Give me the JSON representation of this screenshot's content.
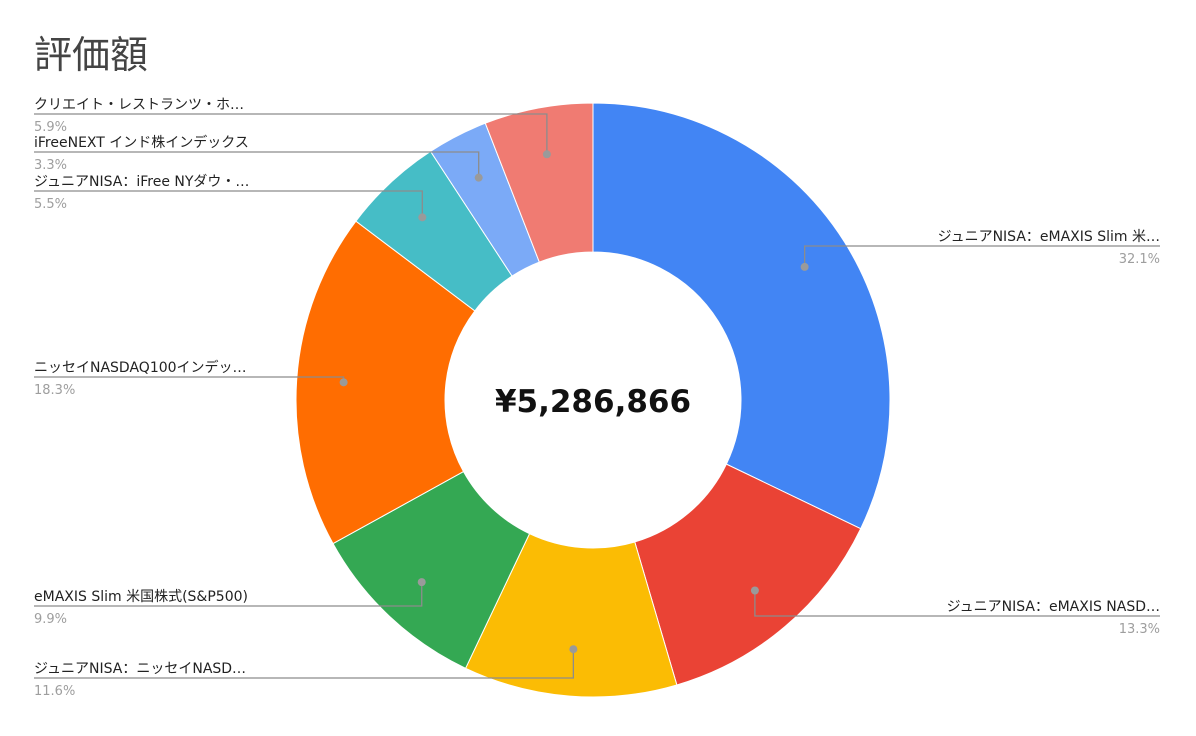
{
  "chart_data": {
    "type": "pie",
    "title": "評価額",
    "donut": true,
    "center_label": "¥5,286,866",
    "legend": "labels",
    "slices": [
      {
        "label": "ジュニアNISA：eMAXIS Slim 米…",
        "percent_label": "32.1%",
        "value": 32.1,
        "color": "#4285F4"
      },
      {
        "label": "ジュニアNISA：eMAXIS NASD…",
        "percent_label": "13.3%",
        "value": 13.3,
        "color": "#EA4335"
      },
      {
        "label": "ジュニアNISA：ニッセイNASD…",
        "percent_label": "11.6%",
        "value": 11.6,
        "color": "#FBBC04"
      },
      {
        "label": "eMAXIS Slim 米国株式(S&P500)",
        "percent_label": "9.9%",
        "value": 9.9,
        "color": "#34A853"
      },
      {
        "label": "ニッセイNASDAQ100インデッ…",
        "percent_label": "18.3%",
        "value": 18.3,
        "color": "#FF6D01"
      },
      {
        "label": "ジュニアNISA：iFree NYダウ・…",
        "percent_label": "5.5%",
        "value": 5.5,
        "color": "#46BDC6"
      },
      {
        "label": "iFreeNEXT インド株インデックス",
        "percent_label": "3.3%",
        "value": 3.3,
        "color": "#7BAAF7"
      },
      {
        "label": "クリエイト・レストランツ・ホ…",
        "percent_label": "5.9%",
        "value": 5.9,
        "color": "#F07B72"
      }
    ]
  }
}
